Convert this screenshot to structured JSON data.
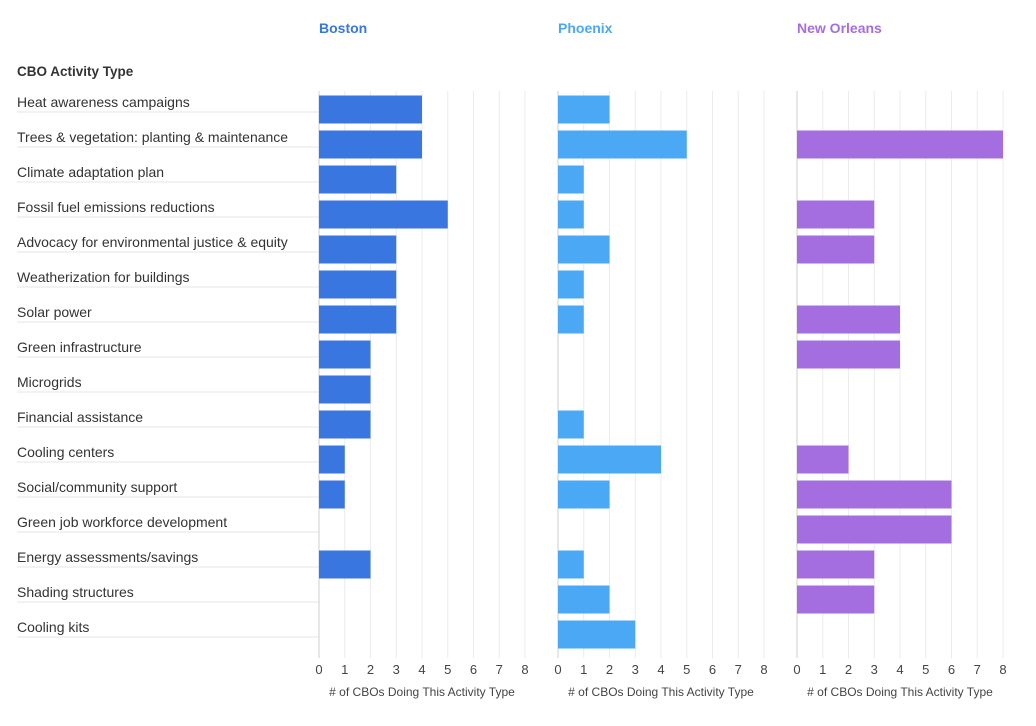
{
  "chart_data": {
    "type": "bar",
    "orientation": "horizontal",
    "category_header": "CBO Activity Type",
    "categories": [
      "Heat awareness campaigns",
      "Trees & vegetation: planting & maintenance",
      "Climate adaptation plan",
      "Fossil fuel emissions reductions",
      "Advocacy for environmental justice & equity",
      "Weatherization for buildings",
      "Solar power",
      "Green infrastructure",
      "Microgrids",
      "Financial assistance",
      "Cooling centers",
      "Social/community support",
      "Green job workforce development",
      "Energy assessments/savings",
      "Shading structures",
      "Cooling kits"
    ],
    "series": [
      {
        "name": "Boston",
        "color": "#3a76e0",
        "values": [
          4,
          4,
          3,
          5,
          3,
          3,
          3,
          2,
          2,
          2,
          1,
          1,
          0,
          2,
          0,
          0
        ]
      },
      {
        "name": "Phoenix",
        "color": "#4aa8f5",
        "values": [
          2,
          5,
          1,
          1,
          2,
          1,
          1,
          0,
          0,
          1,
          4,
          2,
          0,
          1,
          2,
          3
        ]
      },
      {
        "name": "New Orleans",
        "color": "#a56ee0",
        "values": [
          0,
          8,
          0,
          3,
          3,
          0,
          4,
          4,
          0,
          0,
          2,
          6,
          6,
          3,
          3,
          0
        ]
      }
    ],
    "xlim": [
      0,
      8
    ],
    "xticks": [
      "0",
      "1",
      "2",
      "3",
      "4",
      "5",
      "6",
      "7",
      "8"
    ],
    "xlabel": "# of CBOs Doing This Activity Type",
    "grid": true
  }
}
